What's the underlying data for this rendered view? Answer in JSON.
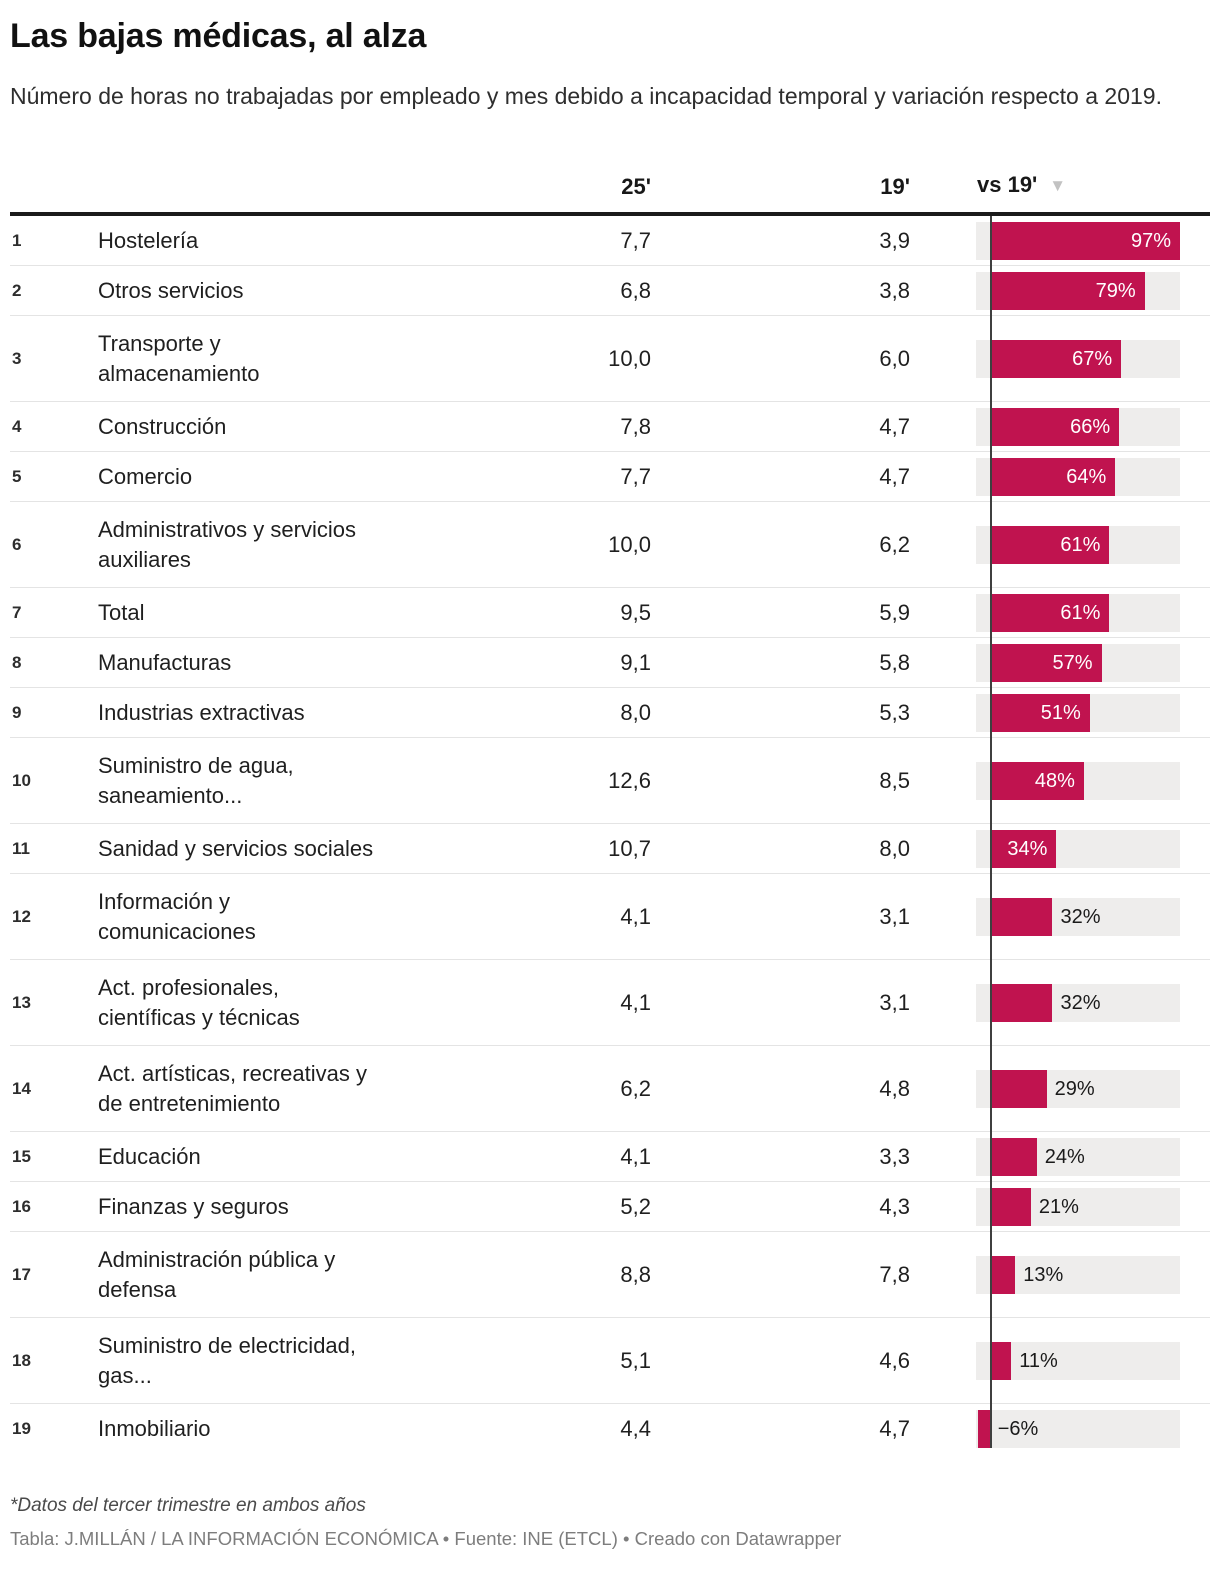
{
  "title": "Las bajas médicas, al alza",
  "description": "Número de horas no trabajadas por empleado y mes debido a incapacidad temporal y variación respecto a 2019.",
  "header": {
    "col_25": "25'",
    "col_19": "19'",
    "col_vs": "vs 19'",
    "sort_icon": "▼"
  },
  "footnote": "*Datos del tercer trimestre en ambos años",
  "credit": "Tabla: J.MILLÁN / LA INFORMACIÓN ECONÓMICA • Fuente: INE (ETCL) • Creado con Datawrapper",
  "colors": {
    "bar": "#c0134f",
    "track": "#eeedec",
    "axis": "#3f3f3f",
    "rule": "#1a1a1a"
  },
  "chart_data": {
    "type": "table",
    "columns": [
      "rank",
      "sector",
      "horas 25'",
      "horas 19'",
      "variación vs 19' (%)"
    ],
    "bar_domain": [
      -7,
      97
    ],
    "bar_type": "bar",
    "rows": [
      {
        "rank": "1",
        "name": "Hostelería",
        "h25": "7,7",
        "h19": "3,9",
        "change": 97,
        "change_label": "97%"
      },
      {
        "rank": "2",
        "name": "Otros servicios",
        "h25": "6,8",
        "h19": "3,8",
        "change": 79,
        "change_label": "79%"
      },
      {
        "rank": "3",
        "name": "Transporte y\nalmacenamiento",
        "h25": "10,0",
        "h19": "6,0",
        "change": 67,
        "change_label": "67%"
      },
      {
        "rank": "4",
        "name": "Construcción",
        "h25": "7,8",
        "h19": "4,7",
        "change": 66,
        "change_label": "66%"
      },
      {
        "rank": "5",
        "name": "Comercio",
        "h25": "7,7",
        "h19": "4,7",
        "change": 64,
        "change_label": "64%"
      },
      {
        "rank": "6",
        "name": "Administrativos y servicios\nauxiliares",
        "h25": "10,0",
        "h19": "6,2",
        "change": 61,
        "change_label": "61%"
      },
      {
        "rank": "7",
        "name": "Total",
        "h25": "9,5",
        "h19": "5,9",
        "change": 61,
        "change_label": "61%"
      },
      {
        "rank": "8",
        "name": "Manufacturas",
        "h25": "9,1",
        "h19": "5,8",
        "change": 57,
        "change_label": "57%"
      },
      {
        "rank": "9",
        "name": "Industrias extractivas",
        "h25": "8,0",
        "h19": "5,3",
        "change": 51,
        "change_label": "51%"
      },
      {
        "rank": "10",
        "name": "Suministro de agua,\nsaneamiento...",
        "h25": "12,6",
        "h19": "8,5",
        "change": 48,
        "change_label": "48%"
      },
      {
        "rank": "11",
        "name": "Sanidad y servicios sociales",
        "h25": "10,7",
        "h19": "8,0",
        "change": 34,
        "change_label": "34%"
      },
      {
        "rank": "12",
        "name": "Información y\ncomunicaciones",
        "h25": "4,1",
        "h19": "3,1",
        "change": 32,
        "change_label": "32%"
      },
      {
        "rank": "13",
        "name": "Act. profesionales,\ncientíficas y técnicas",
        "h25": "4,1",
        "h19": "3,1",
        "change": 32,
        "change_label": "32%"
      },
      {
        "rank": "14",
        "name": "Act. artísticas, recreativas y\nde entretenimiento",
        "h25": "6,2",
        "h19": "4,8",
        "change": 29,
        "change_label": "29%"
      },
      {
        "rank": "15",
        "name": "Educación",
        "h25": "4,1",
        "h19": "3,3",
        "change": 24,
        "change_label": "24%"
      },
      {
        "rank": "16",
        "name": "Finanzas y seguros",
        "h25": "5,2",
        "h19": "4,3",
        "change": 21,
        "change_label": "21%"
      },
      {
        "rank": "17",
        "name": "Administración pública y\ndefensa",
        "h25": "8,8",
        "h19": "7,8",
        "change": 13,
        "change_label": "13%"
      },
      {
        "rank": "18",
        "name": "Suministro de electricidad,\ngas...",
        "h25": "5,1",
        "h19": "4,6",
        "change": 11,
        "change_label": "11%"
      },
      {
        "rank": "19",
        "name": "Inmobiliario",
        "h25": "4,4",
        "h19": "4,7",
        "change": -6,
        "change_label": "−6%"
      }
    ]
  }
}
